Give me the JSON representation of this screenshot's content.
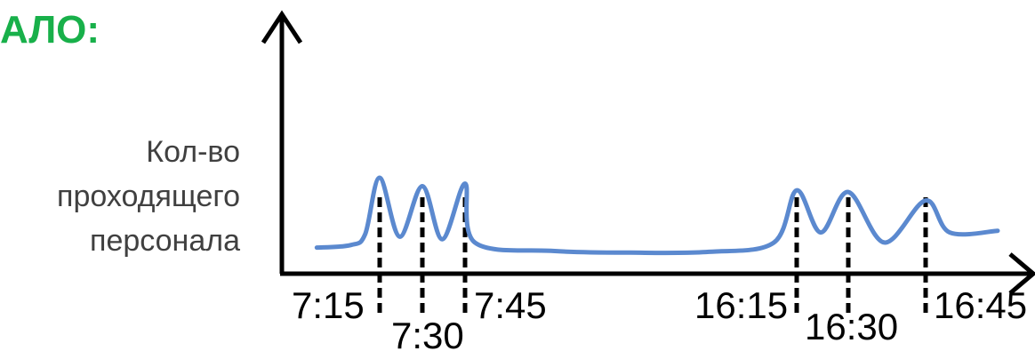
{
  "header": {
    "title": "АЛО:",
    "title_color": "#18b04a"
  },
  "chart_data": {
    "type": "line",
    "ylabel_lines": [
      "Кол-во",
      "проходящего",
      "персонала"
    ],
    "xlabel": "",
    "x_ticks": [
      {
        "label": "7:15",
        "t": 7.25
      },
      {
        "label": "7:30",
        "t": 7.5
      },
      {
        "label": "7:45",
        "t": 7.75
      },
      {
        "label": "16:15",
        "t": 16.25
      },
      {
        "label": "16:30",
        "t": 16.5
      },
      {
        "label": "16:45",
        "t": 16.75
      }
    ],
    "y_ticks": [],
    "grid": false,
    "series": [
      {
        "color": "#5b89cf",
        "points": [
          {
            "x": "6:10",
            "y": 0.12
          },
          {
            "x": "6:45",
            "y": 0.15
          },
          {
            "x": "7:00",
            "y": 0.28
          },
          {
            "x": "7:15",
            "y": 0.95
          },
          {
            "x": "7:22",
            "y": 0.25
          },
          {
            "x": "7:30",
            "y": 0.85
          },
          {
            "x": "7:37",
            "y": 0.22
          },
          {
            "x": "7:45",
            "y": 0.88
          },
          {
            "x": "8:00",
            "y": 0.18
          },
          {
            "x": "10:00",
            "y": 0.08
          },
          {
            "x": "12:00",
            "y": 0.06
          },
          {
            "x": "14:00",
            "y": 0.07
          },
          {
            "x": "15:40",
            "y": 0.18
          },
          {
            "x": "16:15",
            "y": 0.8
          },
          {
            "x": "16:22",
            "y": 0.3
          },
          {
            "x": "16:30",
            "y": 0.78
          },
          {
            "x": "16:37",
            "y": 0.18
          },
          {
            "x": "16:45",
            "y": 0.68
          },
          {
            "x": "17:00",
            "y": 0.3
          },
          {
            "x": "17:30",
            "y": 0.32
          }
        ]
      }
    ],
    "marker_style": "black dashed vertical lines at each tick time"
  }
}
